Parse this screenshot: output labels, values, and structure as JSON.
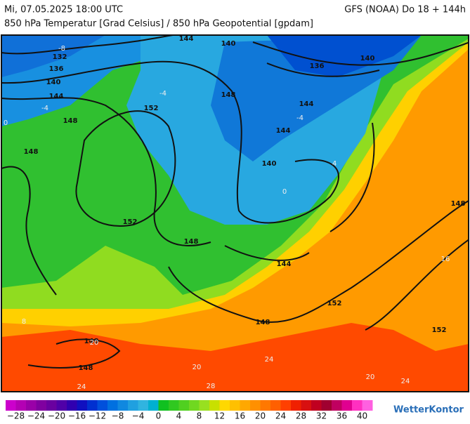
{
  "header": {
    "datetime": "Mi, 07.05.2025 18:00 UTC",
    "model": "GFS (NOAA) Do 18 + 144h",
    "subtitle": "850 hPa Temperatur [Grad Celsius] / 850 hPa Geopotential [gpdam]"
  },
  "map": {
    "geopotential_labels": [
      "132",
      "136",
      "140",
      "144",
      "148",
      "148",
      "152",
      "152",
      "148",
      "144",
      "140",
      "148",
      "144",
      "140",
      "136",
      "140",
      "144",
      "144",
      "152",
      "148",
      "152",
      "148",
      "148",
      "148"
    ],
    "temperature_labels": [
      "-8",
      "-4",
      "0",
      "-4",
      "-4",
      "0",
      "4",
      "8",
      "16",
      "20",
      "20",
      "20",
      "24",
      "24",
      "24",
      "28"
    ]
  },
  "colorbar": {
    "colors": [
      "#cc00cc",
      "#b400b4",
      "#9a00a8",
      "#8000a0",
      "#6a00a0",
      "#5000a8",
      "#3000b0",
      "#1010c0",
      "#0030d0",
      "#0050dc",
      "#0070e0",
      "#1088e0",
      "#20a0e0",
      "#30b4e0",
      "#00b0d0",
      "#10c020",
      "#30c820",
      "#50d020",
      "#70d820",
      "#98e020",
      "#c8e000",
      "#ffd800",
      "#ffc000",
      "#ffa800",
      "#ff9000",
      "#ff7800",
      "#ff6000",
      "#ff4000",
      "#f02000",
      "#d81010",
      "#c00020",
      "#a00030",
      "#c00060",
      "#e00090",
      "#ff30c0",
      "#ff60e0"
    ],
    "labels": [
      "−28",
      "−24",
      "−20",
      "−16",
      "−12",
      "−8",
      "−4",
      "0",
      "4",
      "8",
      "12",
      "16",
      "20",
      "24",
      "28",
      "32",
      "36",
      "40"
    ]
  },
  "logo": "WetterKontor"
}
